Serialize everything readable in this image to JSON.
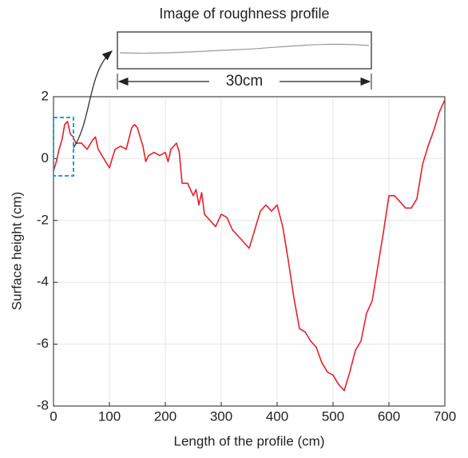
{
  "chart_data": {
    "type": "line",
    "xlabel": "Length of the profile (cm)",
    "ylabel": "Surface height (cm)",
    "inset_title": "Image of roughness profile",
    "scale_label": "30cm",
    "color": "#e8202a",
    "grid": true,
    "xlim": [
      0,
      700
    ],
    "xticks": [
      0,
      100,
      200,
      300,
      400,
      500,
      600,
      700
    ],
    "ylim": [
      -8,
      2
    ],
    "yticks": [
      -8,
      -6,
      -4,
      -2,
      0,
      2
    ],
    "x": [
      0,
      5,
      10,
      15,
      20,
      25,
      30,
      35,
      40,
      50,
      60,
      70,
      75,
      80,
      90,
      100,
      110,
      120,
      130,
      140,
      145,
      150,
      160,
      165,
      170,
      180,
      190,
      200,
      205,
      210,
      220,
      225,
      230,
      240,
      250,
      255,
      260,
      265,
      270,
      280,
      290,
      300,
      310,
      320,
      330,
      340,
      350,
      360,
      370,
      380,
      390,
      400,
      410,
      420,
      430,
      440,
      450,
      460,
      470,
      480,
      490,
      500,
      510,
      520,
      530,
      540,
      550,
      560,
      570,
      580,
      590,
      600,
      610,
      620,
      630,
      640,
      650,
      660,
      670,
      680,
      690,
      700
    ],
    "values": [
      -0.4,
      -0.1,
      0.3,
      0.6,
      1.1,
      1.2,
      0.8,
      0.7,
      0.5,
      0.5,
      0.3,
      0.6,
      0.7,
      0.3,
      0.0,
      -0.3,
      0.3,
      0.4,
      0.3,
      1.0,
      1.1,
      1.0,
      0.4,
      -0.1,
      0.1,
      0.2,
      0.1,
      0.2,
      -0.1,
      0.3,
      0.5,
      0.2,
      -0.8,
      -0.8,
      -1.2,
      -1.0,
      -1.5,
      -1.1,
      -1.8,
      -2.0,
      -2.2,
      -1.8,
      -1.9,
      -2.3,
      -2.5,
      -2.7,
      -2.9,
      -2.3,
      -1.7,
      -1.5,
      -1.7,
      -1.5,
      -2.2,
      -3.3,
      -4.5,
      -5.5,
      -5.6,
      -5.9,
      -6.1,
      -6.6,
      -6.9,
      -7.0,
      -7.3,
      -7.5,
      -6.9,
      -6.2,
      -5.9,
      -5.0,
      -4.6,
      -3.5,
      -2.4,
      -1.2,
      -1.2,
      -1.4,
      -1.6,
      -1.6,
      -1.3,
      -0.2,
      0.4,
      0.9,
      1.5,
      1.9
    ]
  }
}
